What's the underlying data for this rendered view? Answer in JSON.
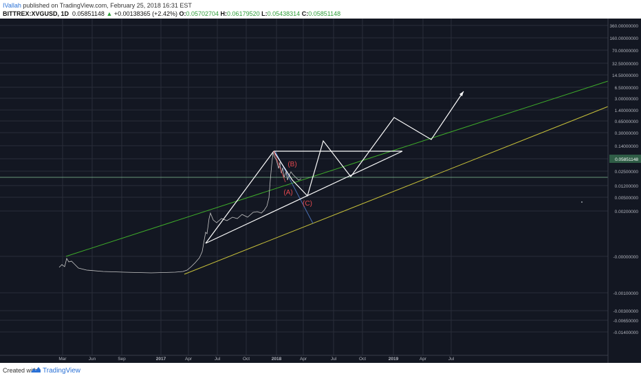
{
  "header": {
    "author": "IVallah",
    "published_text": " published on TradingView.com, February 25, 2018 16:31 EST",
    "symbol": "BITTREX:XVGUSD, 1D",
    "last": "0.05851148",
    "change": "+0.00138365 (+2.42%)",
    "open_label": "O:",
    "open": "0.05702704",
    "high_label": "H:",
    "high": "0.06179520",
    "low_label": "L:",
    "low": "0.05438314",
    "close_label": "C:",
    "close": "0.05851148"
  },
  "footer": {
    "created": "Created with",
    "brand": "TradingView"
  },
  "colors": {
    "background": "#131722",
    "grid": "#2a2e39",
    "axis_text": "#b2b5be",
    "green_line": "#3fae2a",
    "yellow_line": "#c9c23a",
    "price_line": "#86c79a",
    "pattern": "#ffffff",
    "label_red": "#e8494f",
    "projection": "#ffffff",
    "blue_line": "#4a6fb5"
  },
  "chart_data": {
    "type": "line",
    "scale": "log",
    "grid": true,
    "current_price_label": "0.05851148",
    "x_ticks": [
      "Mar",
      "Jun",
      "Sep",
      "2017",
      "Apr",
      "Jul",
      "Oct",
      "2018",
      "Apr",
      "Jul",
      "Oct",
      "2019",
      "Apr",
      "Jul"
    ],
    "y_ticks": [
      "1800.00000000",
      "800.00000000",
      "360.00000000",
      "160.00000000",
      "70.00000000",
      "32.50000000",
      "14.50000000",
      "6.50000000",
      "3.00000000",
      "1.40000000",
      "0.65000000",
      "0.30000000",
      "0.14000000",
      "0.05851148",
      "0.02500000",
      "0.01200000",
      "0.00500000",
      "0.00200000",
      "-0.00000000",
      "-0.00100000",
      "-0.00300000",
      "-0.00650000",
      "-0.01400000"
    ],
    "wave_labels": [
      "(A)",
      "(B)",
      "(C)"
    ],
    "series": [
      {
        "values": [
          0.0005,
          0.0009,
          0.0004,
          0.0002,
          0.0001,
          0.0001,
          0.0001,
          0.0002,
          0.005,
          0.006,
          0.005,
          0.012,
          0.25,
          0.06,
          0.03,
          0.0585
        ]
      }
    ]
  }
}
